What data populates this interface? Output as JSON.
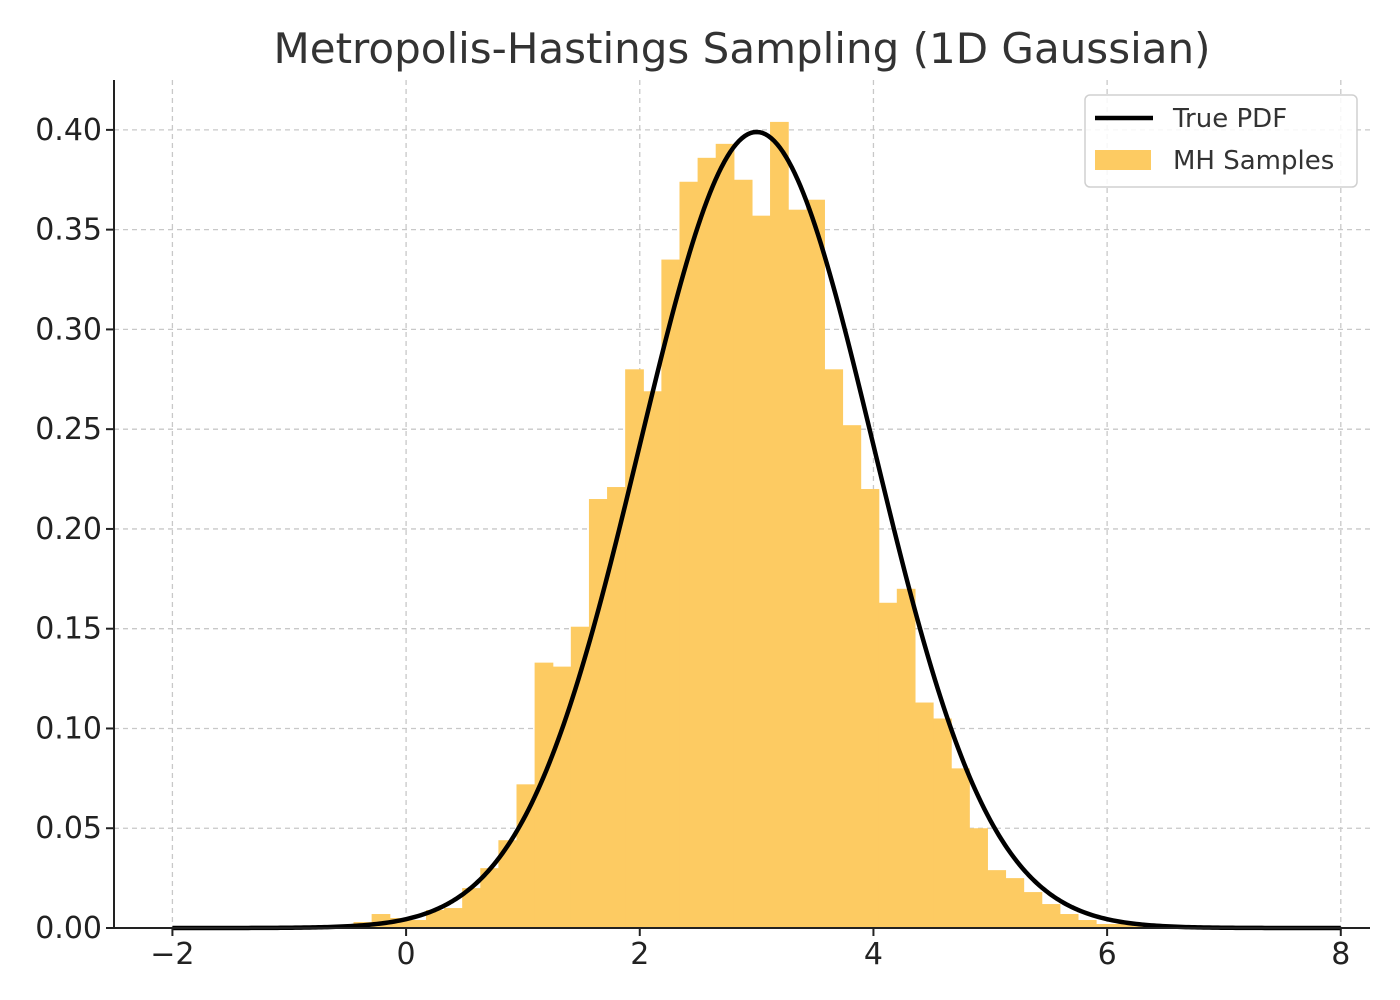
{
  "chart_data": {
    "type": "bar",
    "title": "Metropolis-Hastings Sampling (1D Gaussian)",
    "xlabel": "",
    "ylabel": "",
    "xlim": [
      -2.5,
      8.25
    ],
    "ylim": [
      0,
      0.425
    ],
    "xticks": [
      -2,
      0,
      2,
      4,
      6,
      8
    ],
    "xtick_labels": [
      "−2",
      "0",
      "2",
      "4",
      "6",
      "8"
    ],
    "yticks": [
      0.0,
      0.05,
      0.1,
      0.15,
      0.2,
      0.25,
      0.3,
      0.35,
      0.4
    ],
    "ytick_labels": [
      "0.00",
      "0.05",
      "0.10",
      "0.15",
      "0.20",
      "0.25",
      "0.30",
      "0.35",
      "0.40"
    ],
    "grid": true,
    "legend_position": "top-right",
    "histogram": {
      "name": "MH Samples",
      "color": "#FDCB62",
      "bin_edges": [
        -0.45,
        -0.295,
        -0.14,
        0.015,
        0.17,
        0.325,
        0.48,
        0.635,
        0.79,
        0.945,
        1.1,
        1.255,
        1.41,
        1.565,
        1.72,
        1.875,
        2.03,
        2.185,
        2.34,
        2.495,
        2.65,
        2.805,
        2.96,
        3.115,
        3.27,
        3.425,
        3.58,
        3.735,
        3.89,
        4.045,
        4.2,
        4.355,
        4.51,
        4.665,
        4.82,
        4.975,
        5.13,
        5.285,
        5.44,
        5.595,
        5.75,
        5.905,
        6.06,
        6.215,
        6.37,
        6.525,
        6.68
      ],
      "values": [
        0.003,
        0.007,
        0.005,
        0.004,
        0.009,
        0.01,
        0.02,
        0.03,
        0.044,
        0.072,
        0.133,
        0.131,
        0.151,
        0.215,
        0.221,
        0.28,
        0.269,
        0.335,
        0.374,
        0.386,
        0.393,
        0.375,
        0.357,
        0.404,
        0.36,
        0.365,
        0.28,
        0.252,
        0.22,
        0.163,
        0.17,
        0.113,
        0.105,
        0.08,
        0.05,
        0.029,
        0.025,
        0.018,
        0.012,
        0.007,
        0.004,
        0.002,
        0.002,
        0.001,
        0.001,
        0.001
      ]
    },
    "pdf": {
      "name": "True PDF",
      "color": "#000000",
      "mean": 3,
      "std": 1,
      "x_range": [
        -2,
        8
      ]
    }
  }
}
